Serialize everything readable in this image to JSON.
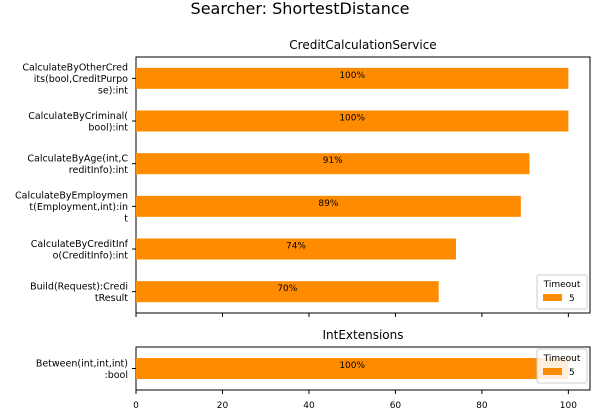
{
  "figure_title": "Searcher: ShortestDistance",
  "colors": {
    "bar": "#ff8c00",
    "axis": "#000000",
    "legend_border": "#cccccc"
  },
  "chart_data": [
    {
      "type": "bar",
      "orientation": "horizontal",
      "title": "CreditCalculationService",
      "xlabel": "",
      "ylabel": "",
      "xlim": [
        0,
        105
      ],
      "grid": false,
      "legend": {
        "title": "Timeout",
        "entries": [
          "5"
        ],
        "placement": "bottom-right"
      },
      "categories": [
        [
          "CalculateByOtherCred",
          "its(bool,CreditPurpo",
          "se):int"
        ],
        [
          "CalculateByCriminal(",
          "bool):int"
        ],
        [
          "CalculateByAge(int,C",
          "reditInfo):int"
        ],
        [
          "CalculateByEmploymen",
          "t(Employment,int):in",
          "t"
        ],
        [
          "CalculateByCreditInf",
          "o(CreditInfo):int"
        ],
        [
          "Build(Request):Credi",
          "tResult"
        ]
      ],
      "series": [
        {
          "name": "5",
          "values": [
            100,
            100,
            91,
            89,
            74,
            70
          ]
        }
      ],
      "data_labels": [
        "100%",
        "100%",
        "91%",
        "89%",
        "74%",
        "70%"
      ]
    },
    {
      "type": "bar",
      "orientation": "horizontal",
      "title": "IntExtensions",
      "xlabel": "",
      "ylabel": "",
      "xlim": [
        0,
        105
      ],
      "grid": false,
      "legend": {
        "title": "Timeout",
        "entries": [
          "5"
        ],
        "placement": "top-right"
      },
      "categories": [
        [
          "Between(int,int,int)",
          ":bool"
        ]
      ],
      "series": [
        {
          "name": "5",
          "values": [
            100
          ]
        }
      ],
      "data_labels": [
        "100%"
      ],
      "xticks": [
        "0",
        "20",
        "40",
        "60",
        "80",
        "100"
      ]
    }
  ]
}
